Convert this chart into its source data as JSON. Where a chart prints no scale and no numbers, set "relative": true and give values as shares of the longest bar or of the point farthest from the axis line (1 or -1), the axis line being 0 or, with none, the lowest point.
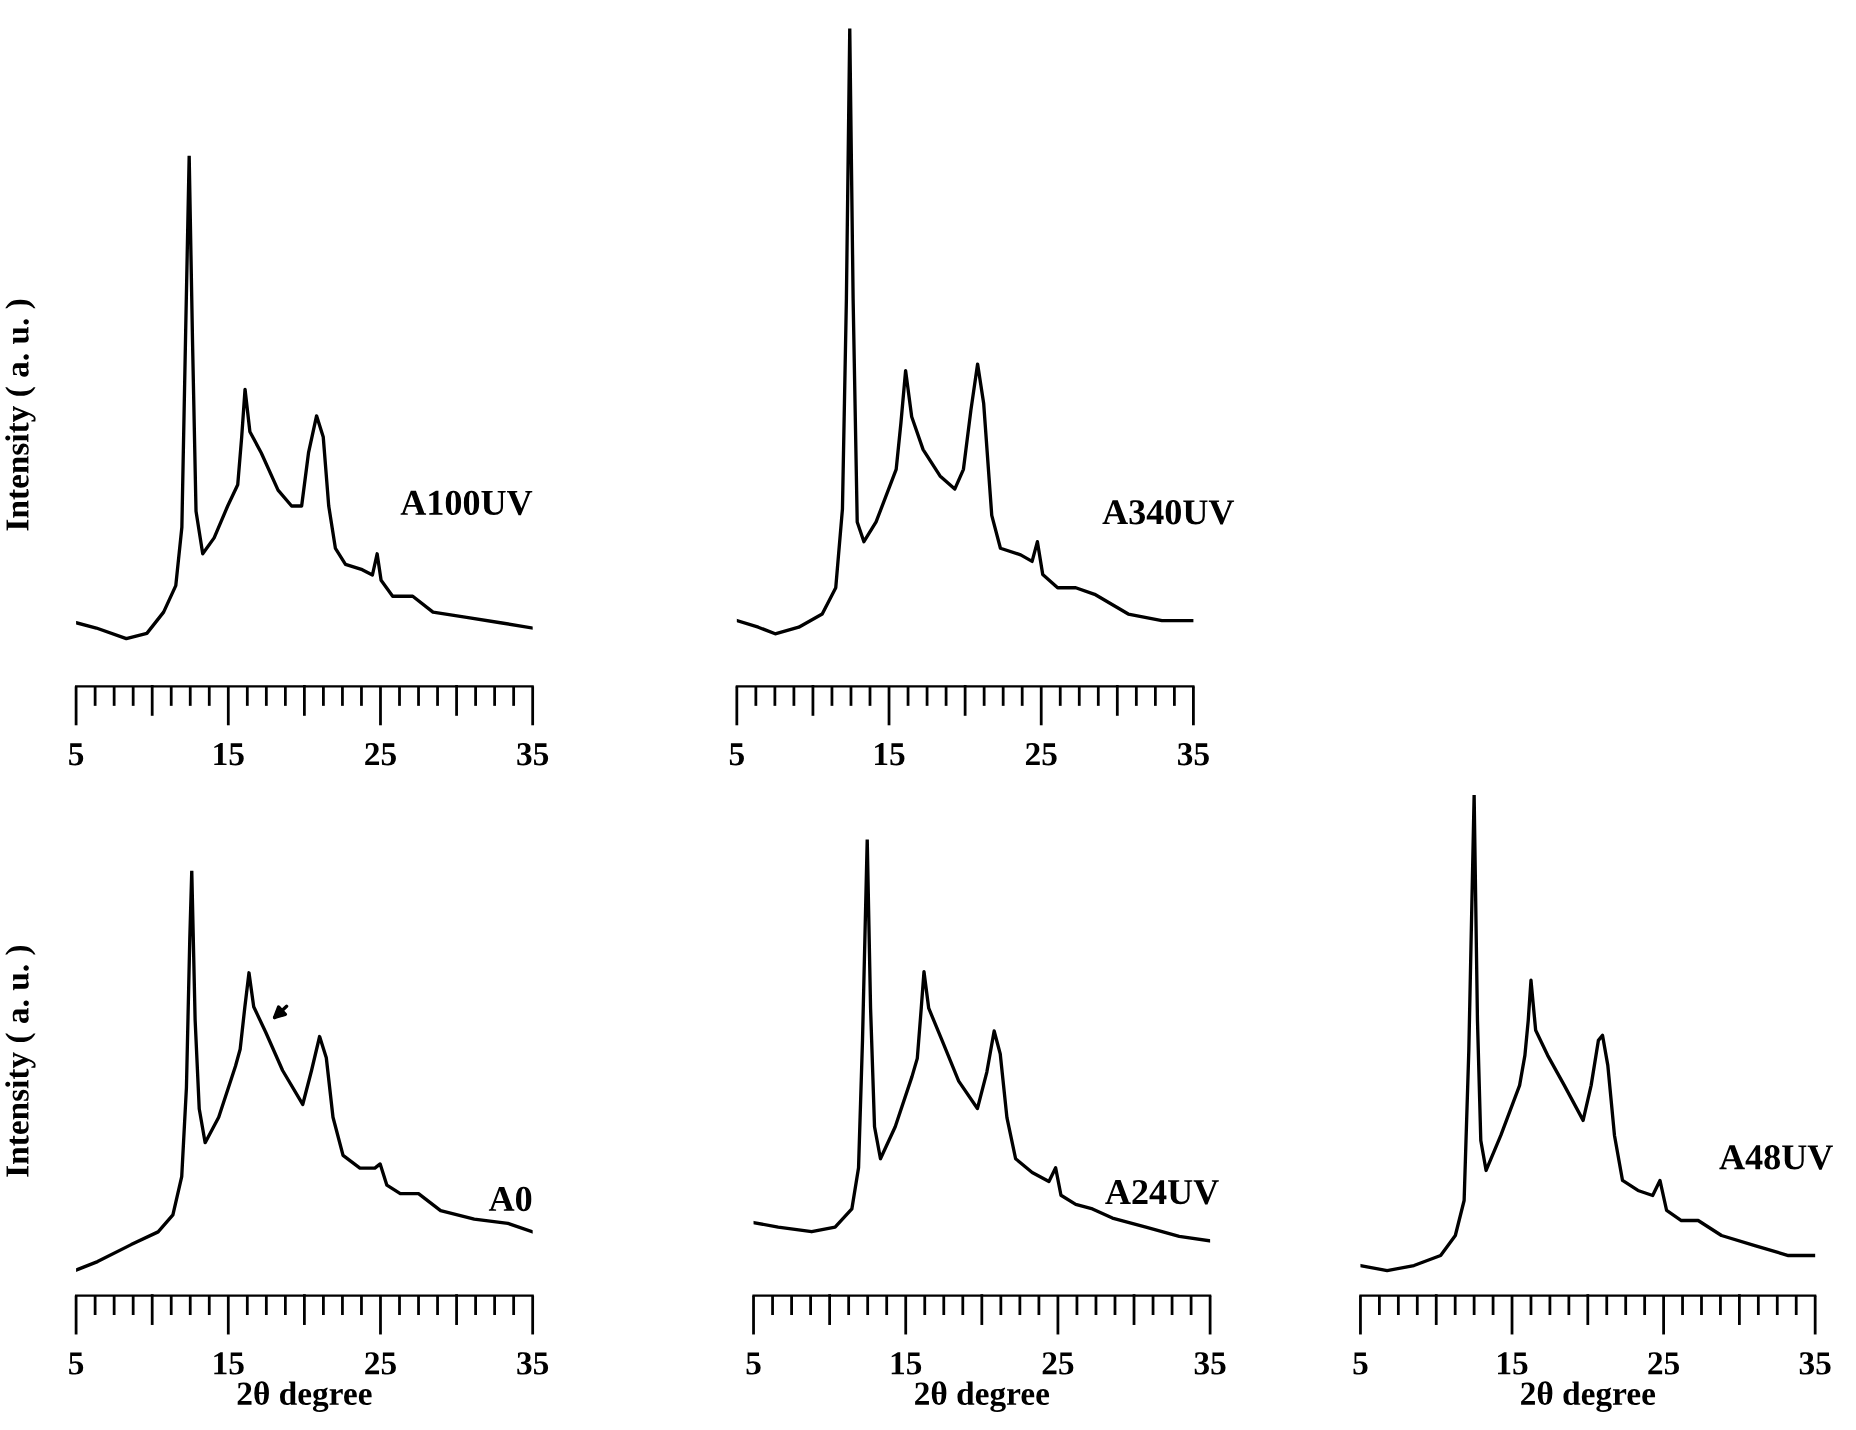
{
  "chart_data": [
    {
      "type": "line",
      "relative": true,
      "ylabel": "Intensity ( a. u. )",
      "xlim": [
        5,
        35
      ],
      "xticks": [
        5,
        15,
        25,
        35
      ],
      "grid": false,
      "x": [
        5.0,
        6.33,
        8.3,
        9.65,
        10.75,
        11.55,
        11.95,
        12.2,
        12.43,
        12.65,
        12.88,
        13.32,
        14.07,
        14.96,
        15.62,
        15.88,
        16.1,
        16.42,
        17.17,
        18.27,
        19.16,
        19.82,
        20.27,
        20.8,
        21.24,
        21.6,
        22.04,
        22.7,
        23.8,
        24.47,
        24.78,
        25.04,
        25.8,
        27.12,
        28.45,
        30.66,
        32.88,
        35.0
      ],
      "series": [
        {
          "name": "A100UV",
          "color": "#000000",
          "values": [
            0.12,
            0.11,
            0.09,
            0.1,
            0.14,
            0.19,
            0.3,
            0.67,
            1.0,
            0.65,
            0.33,
            0.25,
            0.28,
            0.34,
            0.38,
            0.47,
            0.56,
            0.48,
            0.44,
            0.37,
            0.34,
            0.34,
            0.44,
            0.51,
            0.47,
            0.34,
            0.26,
            0.23,
            0.22,
            0.21,
            0.25,
            0.2,
            0.17,
            0.17,
            0.14,
            0.13,
            0.12,
            0.11
          ]
        }
      ]
    },
    {
      "type": "line",
      "relative": true,
      "xlim": [
        5,
        35
      ],
      "xticks": [
        5,
        15,
        25,
        35
      ],
      "grid": false,
      "x": [
        5.0,
        6.41,
        7.52,
        9.07,
        10.61,
        11.5,
        11.94,
        12.2,
        12.42,
        12.64,
        12.91,
        13.35,
        14.15,
        15.47,
        15.78,
        16.09,
        16.49,
        17.24,
        18.35,
        19.32,
        19.89,
        20.38,
        20.82,
        21.22,
        21.75,
        22.32,
        23.65,
        24.4,
        24.75,
        25.1,
        26.08,
        27.27,
        28.51,
        30.72,
        32.93,
        35.0
      ],
      "series": [
        {
          "name": "A340UV",
          "color": "#000000",
          "values": [
            0.1,
            0.09,
            0.08,
            0.09,
            0.11,
            0.15,
            0.27,
            0.59,
            1.0,
            0.59,
            0.25,
            0.22,
            0.25,
            0.33,
            0.4,
            0.48,
            0.41,
            0.36,
            0.32,
            0.3,
            0.33,
            0.42,
            0.49,
            0.43,
            0.26,
            0.21,
            0.2,
            0.19,
            0.22,
            0.17,
            0.15,
            0.15,
            0.14,
            0.11,
            0.1,
            0.1
          ]
        }
      ]
    },
    {
      "type": "line",
      "relative": true,
      "ylabel": "Intensity ( a. u. )",
      "xlabel": "2θ degree",
      "xlim": [
        5,
        35
      ],
      "xticks": [
        5,
        15,
        25,
        35
      ],
      "grid": false,
      "x": [
        5.0,
        6.41,
        8.62,
        10.39,
        11.36,
        11.94,
        12.25,
        12.47,
        12.6,
        12.82,
        13.09,
        13.48,
        14.37,
        15.47,
        15.78,
        16.09,
        16.36,
        16.67,
        17.46,
        18.57,
        19.89,
        20.47,
        21.0,
        21.44,
        21.88,
        22.54,
        23.65,
        24.63,
        24.98,
        25.42,
        26.3,
        27.5,
        28.95,
        31.16,
        33.37,
        35.0
      ],
      "series": [
        {
          "name": "A0",
          "color": "#000000",
          "values": [
            0.06,
            0.08,
            0.12,
            0.15,
            0.19,
            0.28,
            0.49,
            0.84,
            1.0,
            0.65,
            0.44,
            0.36,
            0.42,
            0.54,
            0.58,
            0.68,
            0.76,
            0.68,
            0.62,
            0.53,
            0.45,
            0.53,
            0.61,
            0.56,
            0.42,
            0.33,
            0.3,
            0.3,
            0.31,
            0.26,
            0.24,
            0.24,
            0.2,
            0.18,
            0.17,
            0.15
          ]
        }
      ]
    },
    {
      "type": "line",
      "relative": true,
      "xlabel": "2θ degree",
      "xlim": [
        5,
        35
      ],
      "xticks": [
        5,
        15,
        25,
        35
      ],
      "grid": false,
      "x": [
        5.0,
        6.62,
        8.82,
        10.36,
        11.46,
        11.9,
        12.16,
        12.47,
        12.69,
        12.95,
        13.34,
        14.31,
        15.41,
        15.76,
        16.02,
        16.2,
        16.51,
        17.38,
        18.48,
        19.71,
        20.33,
        20.81,
        21.21,
        21.65,
        22.22,
        23.31,
        24.41,
        24.85,
        25.2,
        26.17,
        27.27,
        28.58,
        30.78,
        32.97,
        35.0
      ],
      "series": [
        {
          "name": "A24UV",
          "color": "#000000",
          "values": [
            0.16,
            0.15,
            0.14,
            0.15,
            0.19,
            0.28,
            0.56,
            1.0,
            0.63,
            0.37,
            0.3,
            0.37,
            0.48,
            0.52,
            0.63,
            0.71,
            0.63,
            0.56,
            0.47,
            0.41,
            0.49,
            0.58,
            0.53,
            0.39,
            0.3,
            0.27,
            0.25,
            0.28,
            0.22,
            0.2,
            0.19,
            0.17,
            0.15,
            0.13,
            0.12
          ]
        }
      ]
    },
    {
      "type": "line",
      "relative": true,
      "xlabel": "2θ degree",
      "xlim": [
        5,
        35
      ],
      "xticks": [
        5,
        15,
        25,
        35
      ],
      "grid": false,
      "x": [
        5.0,
        6.76,
        8.53,
        10.29,
        11.26,
        11.84,
        12.15,
        12.5,
        12.72,
        12.94,
        13.29,
        14.26,
        15.5,
        15.85,
        16.07,
        16.25,
        16.56,
        17.35,
        18.45,
        19.69,
        20.22,
        20.7,
        20.97,
        21.32,
        21.76,
        22.29,
        23.31,
        24.28,
        24.76,
        25.2,
        26.17,
        27.28,
        28.82,
        31.02,
        33.23,
        35.0
      ],
      "series": [
        {
          "name": "A48UV",
          "color": "#000000",
          "values": [
            0.06,
            0.05,
            0.06,
            0.08,
            0.12,
            0.19,
            0.49,
            1.0,
            0.55,
            0.31,
            0.25,
            0.32,
            0.42,
            0.48,
            0.55,
            0.63,
            0.53,
            0.48,
            0.42,
            0.35,
            0.42,
            0.51,
            0.52,
            0.46,
            0.32,
            0.23,
            0.21,
            0.2,
            0.23,
            0.17,
            0.15,
            0.15,
            0.12,
            0.1,
            0.08,
            0.08
          ]
        }
      ]
    }
  ]
}
